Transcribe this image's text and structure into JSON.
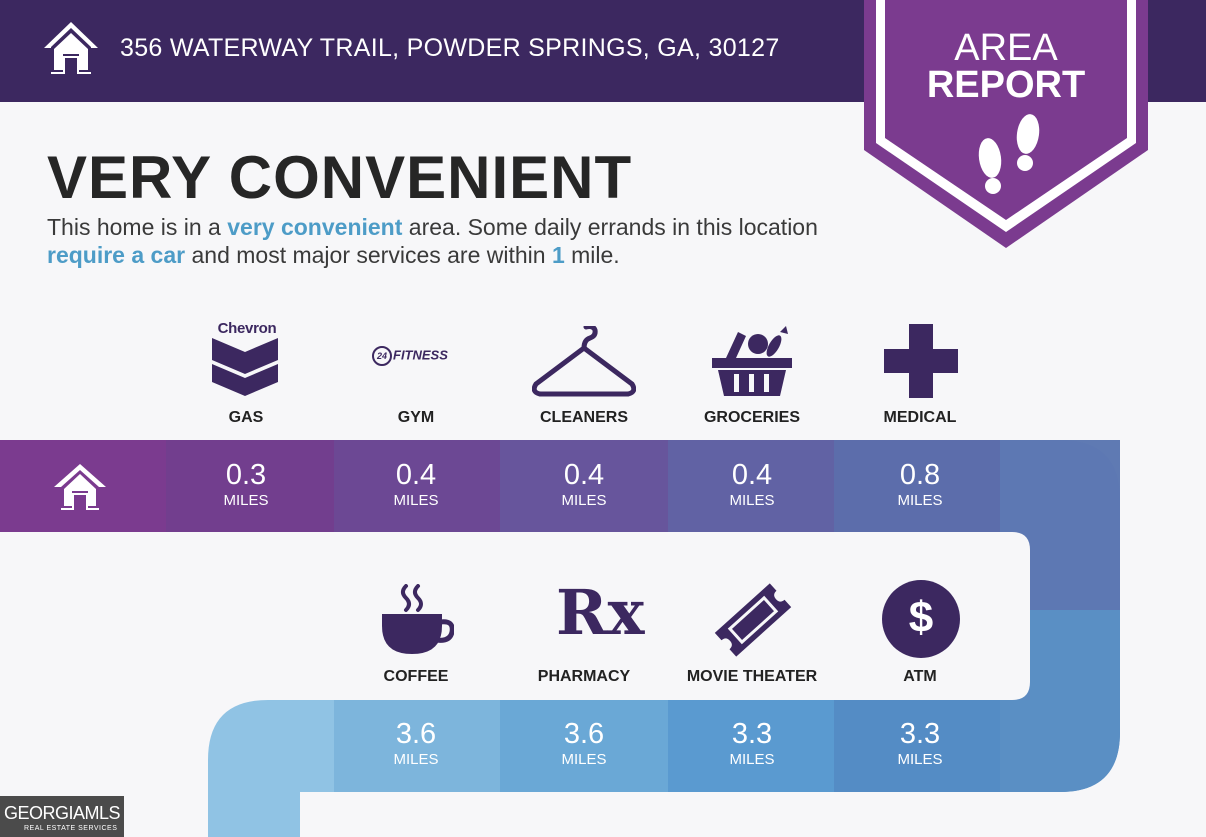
{
  "header": {
    "address": "356 WATERWAY TRAIL, POWDER SPRINGS, GA, 30127",
    "home_icon": "home-icon",
    "color": "#3c2860"
  },
  "badge": {
    "line1": "AREA",
    "line2": "REPORT",
    "icon": "footprints-icon",
    "color": "#7b3b8f"
  },
  "summary": {
    "heading": "VERY CONVENIENT",
    "desc_1": "This home is in a ",
    "desc_hl_1": "very convenient",
    "desc_2": " area. Some daily errands in this location ",
    "desc_hl_2": "require a car",
    "desc_3": " and most major services are within ",
    "desc_hl_3": "1",
    "desc_4": " mile.",
    "highlight_color": "#4d9cc7"
  },
  "logos": {
    "chevron": "Chevron",
    "fitness_num": "24",
    "fitness": "FITNESS"
  },
  "row1": [
    {
      "label": "GAS",
      "value": "0.3",
      "unit": "MILES",
      "icon": "chevron-logo-icon"
    },
    {
      "label": "GYM",
      "value": "0.4",
      "unit": "MILES",
      "icon": "24-hour-fitness-logo-icon"
    },
    {
      "label": "CLEANERS",
      "value": "0.4",
      "unit": "MILES",
      "icon": "hanger-icon"
    },
    {
      "label": "GROCERIES",
      "value": "0.4",
      "unit": "MILES",
      "icon": "grocery-basket-icon"
    },
    {
      "label": "MEDICAL",
      "value": "0.8",
      "unit": "MILES",
      "icon": "medical-cross-icon"
    }
  ],
  "row2": [
    {
      "label": "COFFEE",
      "value": "3.6",
      "unit": "MILES",
      "icon": "coffee-cup-icon"
    },
    {
      "label": "PHARMACY",
      "value": "3.6",
      "unit": "MILES",
      "icon": "rx-icon"
    },
    {
      "label": "MOVIE THEATER",
      "value": "3.3",
      "unit": "MILES",
      "icon": "movie-ticket-icon"
    },
    {
      "label": "ATM",
      "value": "3.3",
      "unit": "MILES",
      "icon": "dollar-icon"
    }
  ],
  "pharmacy_symbol": "Rx",
  "atm_symbol": "$",
  "watermark": {
    "line1": "GEORGIAMLS",
    "line2": "REAL ESTATE SERVICES"
  }
}
